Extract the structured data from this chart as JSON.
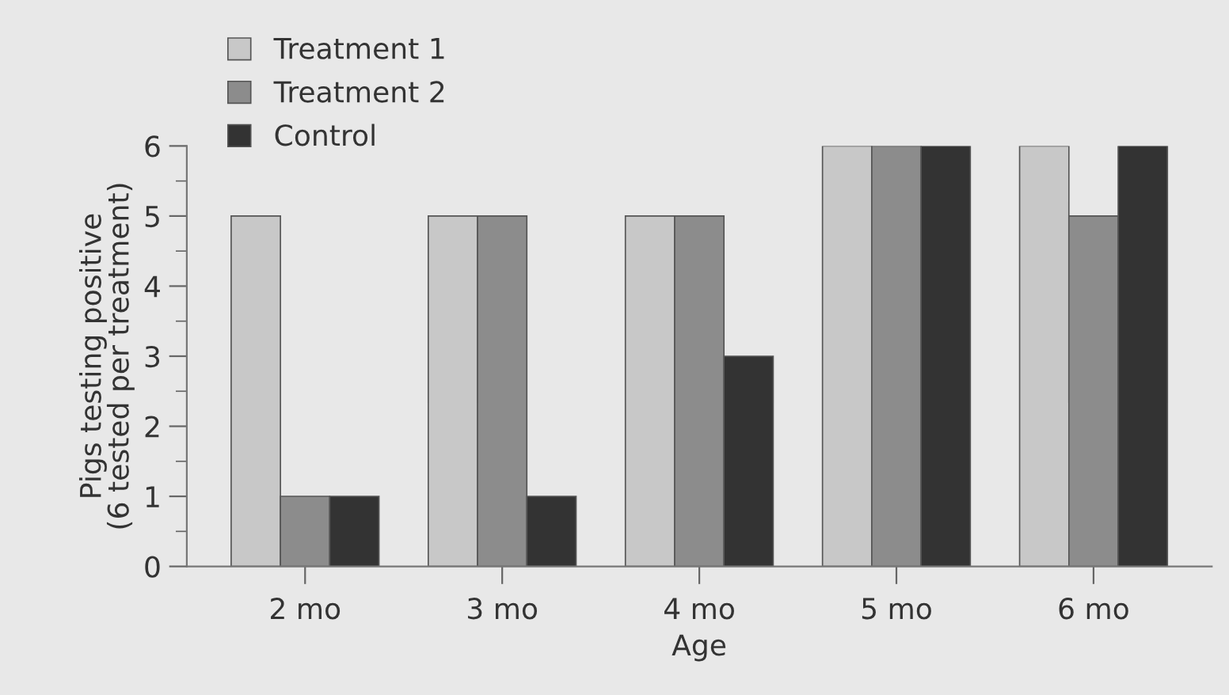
{
  "chart_data": {
    "type": "bar",
    "xlabel": "Age",
    "ylabel": "Pigs testing positive\n(6 tested per treatment)",
    "categories": [
      "2 mo",
      "3 mo",
      "4 mo",
      "5 mo",
      "6 mo"
    ],
    "series": [
      {
        "name": "Treatment 1",
        "color": "#c8c8c8",
        "values": [
          5,
          5,
          5,
          6,
          6
        ]
      },
      {
        "name": "Treatment 2",
        "color": "#8c8c8c",
        "values": [
          1,
          5,
          5,
          6,
          5
        ]
      },
      {
        "name": "Control",
        "color": "#333333",
        "values": [
          1,
          1,
          3,
          6,
          6
        ]
      }
    ],
    "ylim": [
      0,
      6
    ],
    "yticks": [
      0,
      1,
      2,
      3,
      4,
      5,
      6
    ],
    "grid": false,
    "legend": "top left"
  }
}
